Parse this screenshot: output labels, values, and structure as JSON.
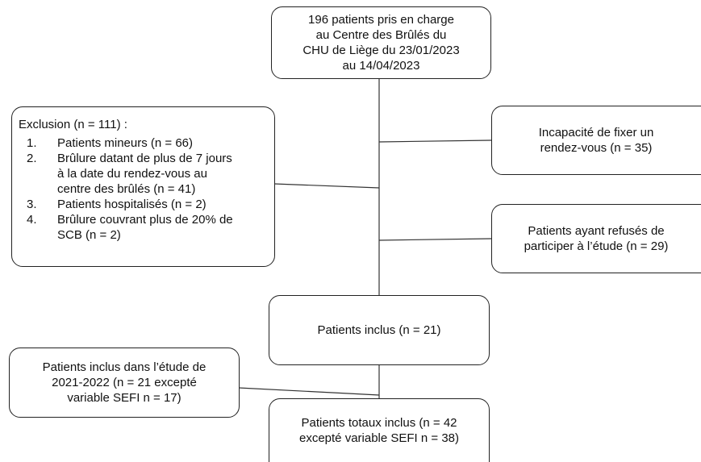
{
  "nodes": {
    "source": {
      "lines": [
        "196 patients pris en charge",
        "au Centre des Brûlés du",
        "CHU de Liège du 23/01/2023",
        "au 14/04/2023"
      ]
    },
    "exclusion": {
      "title": "Exclusion (n = 111) :",
      "items": [
        {
          "number": "1.",
          "lines": [
            "Patients mineurs (n = 66)"
          ]
        },
        {
          "number": "2.",
          "lines": [
            "Brûlure datant de plus de 7 jours",
            "à la date du rendez-vous au",
            "centre des brûlés (n = 41)"
          ]
        },
        {
          "number": "3.",
          "lines": [
            "Patients hospitalisés (n = 2)"
          ]
        },
        {
          "number": "4.",
          "lines": [
            "Brûlure couvrant plus de 20% de",
            "SCB (n = 2)"
          ]
        }
      ]
    },
    "no_appointment": {
      "lines": [
        "Incapacité de fixer un",
        "rendez-vous (n = 35)"
      ]
    },
    "refused": {
      "lines": [
        "Patients ayant refusés de",
        "participer à l’étude (n = 29)"
      ]
    },
    "included": {
      "lines": [
        "Patients inclus (n = 21)"
      ]
    },
    "previous_study": {
      "lines": [
        "Patients inclus dans l’étude de",
        "2021-2022 (n = 21 excepté",
        "variable SEFI n = 17)"
      ]
    },
    "total": {
      "lines": [
        "Patients totaux inclus (n = 42",
        "excepté variable SEFI n = 38)"
      ]
    }
  }
}
